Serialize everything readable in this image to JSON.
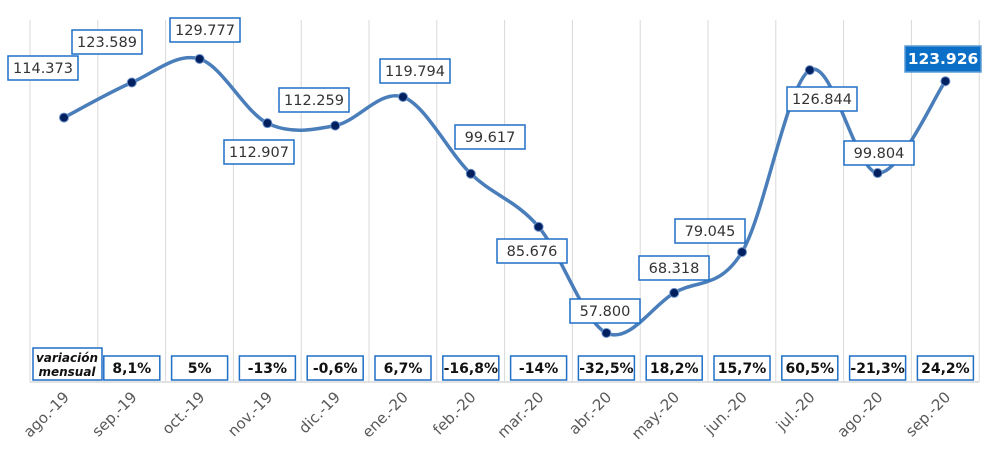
{
  "chart_data": {
    "type": "line",
    "title": "",
    "xlabel": "",
    "ylabel": "",
    "categories": [
      "ago.-19",
      "sep.-19",
      "oct.-19",
      "nov.-19",
      "dic.-19",
      "ene.-20",
      "feb.-20",
      "mar.-20",
      "abr.-20",
      "may.-20",
      "jun.-20",
      "jul.-20",
      "ago.-20",
      "sep.-20"
    ],
    "values": [
      114373,
      123589,
      129777,
      112907,
      112259,
      119794,
      99617,
      85676,
      57800,
      68318,
      79045,
      126844,
      99804,
      123926
    ],
    "value_labels": [
      "114.373",
      "123.589",
      "129.777",
      "112.907",
      "112.259",
      "119.794",
      "99.617",
      "85.676",
      "57.800",
      "68.318",
      "79.045",
      "126.844",
      "99.804",
      "123.926"
    ],
    "variation_title": [
      "variación",
      "mensual"
    ],
    "variation": [
      "8,1%",
      "5%",
      "-13%",
      "-0,6%",
      "6,7%",
      "-16,8%",
      "-14%",
      "-32,5%",
      "18,2%",
      "15,7%",
      "60,5%",
      "-21,3%",
      "24,2%"
    ],
    "grid": "vertical",
    "colors": {
      "line": "#4A7EBB",
      "marker": "#002060",
      "box_border": "#1F6FC5",
      "highlight": "#0B6FC7"
    }
  }
}
